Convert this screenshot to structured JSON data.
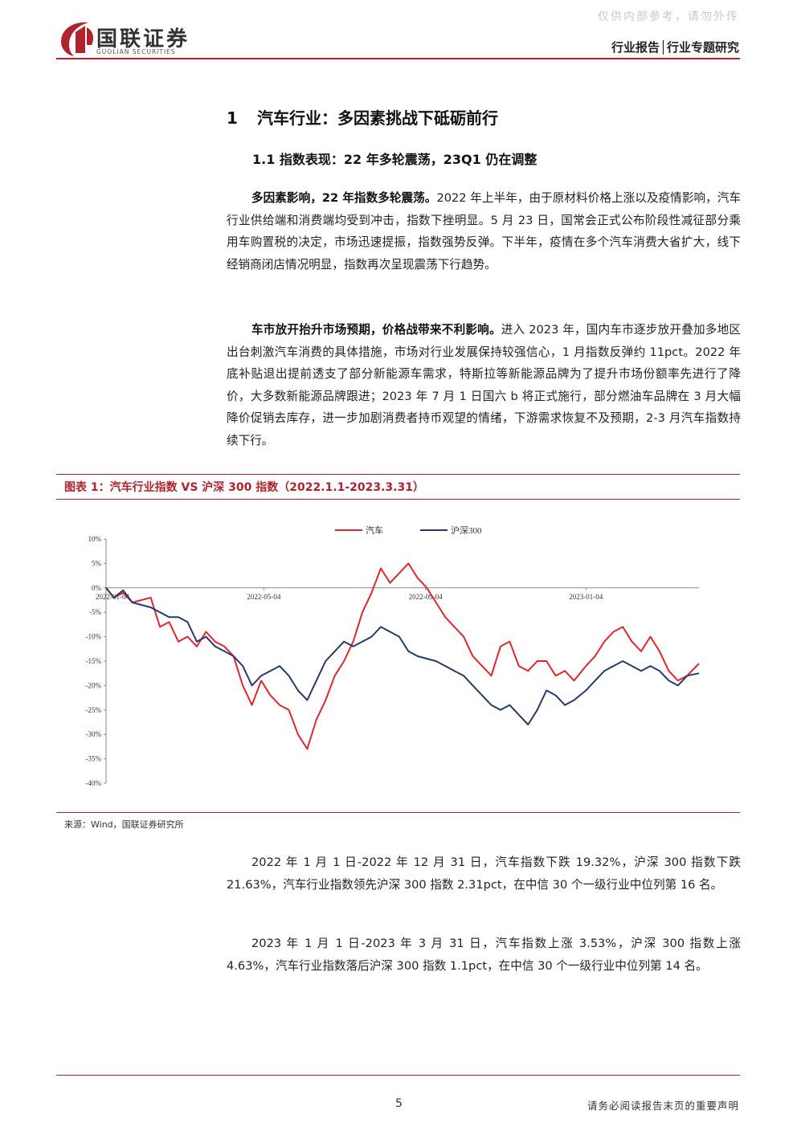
{
  "header": {
    "watermark": "仅供内部参考，请勿外传",
    "company_cn": "国联证券",
    "company_en": "GUOLIAN SECURITIES",
    "report_type": "行业报告│行业专题研究",
    "brand_color": "#b0232a"
  },
  "section": {
    "h1_num": "1",
    "h1_text": "汽车行业：多因素挑战下砥砺前行",
    "h2": "1.1 指数表现：22 年多轮震荡，23Q1 仍在调整"
  },
  "paragraphs": {
    "p1_bold": "多因素影响，22 年指数多轮震荡。",
    "p1_text": "2022 年上半年，由于原材料价格上涨以及疫情影响，汽车行业供给端和消费端均受到冲击，指数下挫明显。5 月 23 日，国常会正式公布阶段性减征部分乘用车购置税的决定，市场迅速提振，指数强势反弹。下半年，疫情在多个汽车消费大省扩大，线下经销商闭店情况明显，指数再次呈现震荡下行趋势。",
    "p2_bold": "车市放开抬升市场预期，价格战带来不利影响。",
    "p2_text": "进入 2023 年，国内车市逐步放开叠加多地区出台刺激汽车消费的具体措施，市场对行业发展保持较强信心，1 月指数反弹约 11pct。2022 年底补贴退出提前透支了部分新能源车需求，特斯拉等新能源品牌为了提升市场份额率先进行了降价，大多数新能源品牌跟进；2023 年 7 月 1 日国六 b 将正式施行，部分燃油车品牌在 3 月大幅降价促销去库存，进一步加剧消费者持币观望的情绪，下游需求恢复不及预期，2-3 月汽车指数持续下行。",
    "p3": "2022 年 1 月 1 日-2022 年 12 月 31 日，汽车指数下跌 19.32%，沪深 300 指数下跌 21.63%，汽车行业指数领先沪深 300 指数 2.31pct，在中信 30 个一级行业中位列第 16 名。",
    "p4": "2023 年 1 月 1 日-2023 年 3 月 31 日，汽车指数上涨 3.53%，沪深 300 指数上涨 4.63%，汽车行业指数落后沪深 300 指数 1.1pct，在中信 30 个一级行业中位列第 14 名。"
  },
  "figure": {
    "title": "图表 1：汽车行业指数 VS 沪深 300 指数（2022.1.1-2023.3.31）",
    "source": "来源：Wind，国联证券研究所"
  },
  "footer": {
    "page": "5",
    "disclaimer": "请务必阅读报告末页的重要声明"
  },
  "chart_data": {
    "type": "line",
    "title": "",
    "xlabel": "",
    "ylabel": "",
    "ylim": [
      -40,
      10
    ],
    "y_ticks": [
      "10%",
      "5%",
      "0%",
      "-5%",
      "-10%",
      "-15%",
      "-20%",
      "-25%",
      "-30%",
      "-35%",
      "-40%"
    ],
    "x_ticks": [
      "2022-01-04",
      "2022-05-04",
      "2022-09-04",
      "2023-01-04"
    ],
    "x_range": [
      "2022-01-04",
      "2023-03-31"
    ],
    "legend_position": "top-center",
    "series": [
      {
        "name": "汽车",
        "color": "#e0262b",
        "points": [
          [
            "2022-01-04",
            0.0
          ],
          [
            "2022-01-10",
            -2.0
          ],
          [
            "2022-01-17",
            -1.0
          ],
          [
            "2022-01-24",
            -3.0
          ],
          [
            "2022-02-07",
            -2.0
          ],
          [
            "2022-02-14",
            -8.0
          ],
          [
            "2022-02-21",
            -7.0
          ],
          [
            "2022-02-28",
            -11.0
          ],
          [
            "2022-03-07",
            -10.0
          ],
          [
            "2022-03-14",
            -12.0
          ],
          [
            "2022-03-21",
            -9.0
          ],
          [
            "2022-03-28",
            -11.0
          ],
          [
            "2022-04-04",
            -12.0
          ],
          [
            "2022-04-11",
            -14.0
          ],
          [
            "2022-04-18",
            -20.0
          ],
          [
            "2022-04-25",
            -24.0
          ],
          [
            "2022-05-02",
            -19.0
          ],
          [
            "2022-05-09",
            -22.0
          ],
          [
            "2022-05-16",
            -24.0
          ],
          [
            "2022-05-23",
            -25.0
          ],
          [
            "2022-05-30",
            -30.0
          ],
          [
            "2022-06-06",
            -33.0
          ],
          [
            "2022-06-13",
            -27.0
          ],
          [
            "2022-06-20",
            -23.0
          ],
          [
            "2022-06-27",
            -18.0
          ],
          [
            "2022-07-04",
            -15.0
          ],
          [
            "2022-07-11",
            -11.0
          ],
          [
            "2022-07-18",
            -5.0
          ],
          [
            "2022-07-25",
            -1.0
          ],
          [
            "2022-08-01",
            4.0
          ],
          [
            "2022-08-08",
            1.0
          ],
          [
            "2022-08-15",
            3.0
          ],
          [
            "2022-08-22",
            5.0
          ],
          [
            "2022-08-29",
            2.0
          ],
          [
            "2022-09-05",
            0.0
          ],
          [
            "2022-09-12",
            -3.0
          ],
          [
            "2022-09-19",
            -6.0
          ],
          [
            "2022-09-26",
            -8.0
          ],
          [
            "2022-10-03",
            -10.0
          ],
          [
            "2022-10-10",
            -14.0
          ],
          [
            "2022-10-17",
            -16.0
          ],
          [
            "2022-10-24",
            -18.0
          ],
          [
            "2022-10-31",
            -12.0
          ],
          [
            "2022-11-07",
            -11.0
          ],
          [
            "2022-11-14",
            -16.0
          ],
          [
            "2022-11-21",
            -17.0
          ],
          [
            "2022-11-28",
            -15.0
          ],
          [
            "2022-12-05",
            -15.0
          ],
          [
            "2022-12-12",
            -18.0
          ],
          [
            "2022-12-19",
            -17.0
          ],
          [
            "2022-12-26",
            -19.0
          ],
          [
            "2023-01-04",
            -16.0
          ],
          [
            "2023-01-11",
            -14.0
          ],
          [
            "2023-01-18",
            -11.0
          ],
          [
            "2023-01-25",
            -9.0
          ],
          [
            "2023-02-01",
            -8.0
          ],
          [
            "2023-02-08",
            -11.0
          ],
          [
            "2023-02-15",
            -13.0
          ],
          [
            "2023-02-22",
            -10.0
          ],
          [
            "2023-03-01",
            -13.0
          ],
          [
            "2023-03-08",
            -17.0
          ],
          [
            "2023-03-15",
            -19.0
          ],
          [
            "2023-03-22",
            -18.0
          ],
          [
            "2023-03-31",
            -15.5
          ]
        ]
      },
      {
        "name": "沪深300",
        "color": "#243a6a",
        "points": [
          [
            "2022-01-04",
            0.0
          ],
          [
            "2022-01-10",
            -2.0
          ],
          [
            "2022-01-17",
            -0.5
          ],
          [
            "2022-01-24",
            -3.0
          ],
          [
            "2022-02-07",
            -4.0
          ],
          [
            "2022-02-14",
            -5.0
          ],
          [
            "2022-02-21",
            -6.0
          ],
          [
            "2022-02-28",
            -6.0
          ],
          [
            "2022-03-07",
            -7.0
          ],
          [
            "2022-03-14",
            -11.0
          ],
          [
            "2022-03-21",
            -10.0
          ],
          [
            "2022-03-28",
            -12.0
          ],
          [
            "2022-04-04",
            -13.0
          ],
          [
            "2022-04-11",
            -14.0
          ],
          [
            "2022-04-18",
            -16.0
          ],
          [
            "2022-04-25",
            -20.0
          ],
          [
            "2022-05-02",
            -18.0
          ],
          [
            "2022-05-09",
            -17.0
          ],
          [
            "2022-05-16",
            -16.0
          ],
          [
            "2022-05-23",
            -18.0
          ],
          [
            "2022-05-30",
            -21.0
          ],
          [
            "2022-06-06",
            -23.0
          ],
          [
            "2022-06-13",
            -19.0
          ],
          [
            "2022-06-20",
            -15.0
          ],
          [
            "2022-06-27",
            -13.0
          ],
          [
            "2022-07-04",
            -11.0
          ],
          [
            "2022-07-11",
            -12.0
          ],
          [
            "2022-07-18",
            -11.0
          ],
          [
            "2022-07-25",
            -10.0
          ],
          [
            "2022-08-01",
            -8.0
          ],
          [
            "2022-08-08",
            -9.0
          ],
          [
            "2022-08-15",
            -10.0
          ],
          [
            "2022-08-22",
            -13.0
          ],
          [
            "2022-08-29",
            -14.0
          ],
          [
            "2022-09-05",
            -14.5
          ],
          [
            "2022-09-12",
            -15.0
          ],
          [
            "2022-09-19",
            -16.0
          ],
          [
            "2022-09-26",
            -17.0
          ],
          [
            "2022-10-03",
            -18.0
          ],
          [
            "2022-10-10",
            -20.0
          ],
          [
            "2022-10-17",
            -22.0
          ],
          [
            "2022-10-24",
            -24.0
          ],
          [
            "2022-10-31",
            -25.0
          ],
          [
            "2022-11-07",
            -24.0
          ],
          [
            "2022-11-14",
            -26.0
          ],
          [
            "2022-11-21",
            -28.0
          ],
          [
            "2022-11-28",
            -25.0
          ],
          [
            "2022-12-05",
            -21.0
          ],
          [
            "2022-12-12",
            -22.0
          ],
          [
            "2022-12-19",
            -24.0
          ],
          [
            "2022-12-26",
            -23.0
          ],
          [
            "2023-01-04",
            -21.0
          ],
          [
            "2023-01-11",
            -19.0
          ],
          [
            "2023-01-18",
            -17.0
          ],
          [
            "2023-01-25",
            -16.0
          ],
          [
            "2023-02-01",
            -15.0
          ],
          [
            "2023-02-08",
            -16.0
          ],
          [
            "2023-02-15",
            -17.0
          ],
          [
            "2023-02-22",
            -16.0
          ],
          [
            "2023-03-01",
            -17.0
          ],
          [
            "2023-03-08",
            -19.0
          ],
          [
            "2023-03-15",
            -20.0
          ],
          [
            "2023-03-22",
            -18.0
          ],
          [
            "2023-03-31",
            -17.5
          ]
        ]
      }
    ]
  }
}
